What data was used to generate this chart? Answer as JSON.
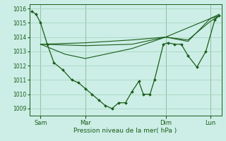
{
  "bg_color": "#cceee6",
  "line_color": "#1a5c1a",
  "grid_color": "#aad4c0",
  "xlabel": "Pression niveau de la mer( hPa )",
  "ylim": [
    1008.5,
    1016.3
  ],
  "yticks": [
    1009,
    1010,
    1011,
    1012,
    1013,
    1014,
    1015,
    1016
  ],
  "xlim": [
    -2,
    170
  ],
  "xtick_positions": [
    8,
    48,
    120,
    160
  ],
  "xtick_labels": [
    "Sam",
    "Mar",
    "Dim",
    "Lun"
  ],
  "vline_positions": [
    8,
    48,
    120,
    160
  ],
  "series_main": {
    "x": [
      0,
      4,
      8,
      14,
      20,
      28,
      36,
      42,
      48,
      54,
      60,
      66,
      72,
      78,
      84,
      90,
      96,
      100,
      106,
      110,
      118,
      122,
      128,
      134,
      140,
      148,
      156,
      164,
      168
    ],
    "y": [
      1015.8,
      1015.6,
      1015.0,
      1013.5,
      1012.2,
      1011.7,
      1011.0,
      1010.8,
      1010.4,
      1010.0,
      1009.6,
      1009.2,
      1009.0,
      1009.4,
      1009.4,
      1010.2,
      1010.9,
      1010.0,
      1010.0,
      1011.0,
      1013.5,
      1013.6,
      1013.5,
      1013.5,
      1012.7,
      1011.9,
      1013.0,
      1015.2,
      1015.5
    ]
  },
  "series2": {
    "x": [
      8,
      48,
      90,
      120,
      160,
      168
    ],
    "y": [
      1013.5,
      1013.6,
      1013.8,
      1014.0,
      1015.3,
      1015.5
    ]
  },
  "series3": {
    "x": [
      8,
      48,
      90,
      120,
      140,
      160,
      168
    ],
    "y": [
      1013.5,
      1013.4,
      1013.5,
      1014.0,
      1013.8,
      1015.1,
      1015.5
    ]
  },
  "series4": {
    "x": [
      8,
      30,
      48,
      90,
      120,
      140,
      160,
      168
    ],
    "y": [
      1013.5,
      1012.8,
      1012.5,
      1013.2,
      1014.0,
      1013.7,
      1015.3,
      1015.6
    ]
  }
}
